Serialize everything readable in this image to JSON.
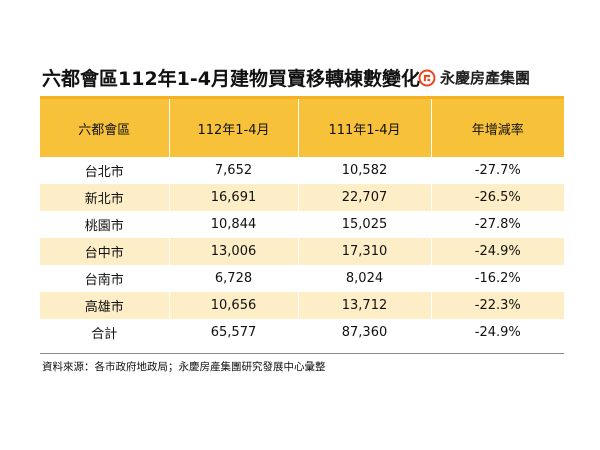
{
  "title": "六都會區112年1-4月建物買賣移轉棟數變化",
  "brand": {
    "name": "永慶房產集團",
    "icon": "yungching-logo-icon",
    "accent_color": "#e8471f"
  },
  "colors": {
    "header": "#f7c23a",
    "row_alt": "#fdeec7",
    "rule": "#f4b223"
  },
  "table": {
    "headers": [
      "六都會區",
      "112年1-4月",
      "111年1-4月",
      "年增減率"
    ],
    "rows": [
      [
        "台北市",
        "7,652",
        "10,582",
        "-27.7%"
      ],
      [
        "新北市",
        "16,691",
        "22,707",
        "-26.5%"
      ],
      [
        "桃園市",
        "10,844",
        "15,025",
        "-27.8%"
      ],
      [
        "台中市",
        "13,006",
        "17,310",
        "-24.9%"
      ],
      [
        "台南市",
        "6,728",
        "8,024",
        "-16.2%"
      ],
      [
        "高雄市",
        "10,656",
        "13,712",
        "-22.3%"
      ],
      [
        "合計",
        "65,577",
        "87,360",
        "-24.9%"
      ]
    ]
  },
  "source": "資料來源：各市政府地政局；永慶房產集團研究發展中心彙整"
}
